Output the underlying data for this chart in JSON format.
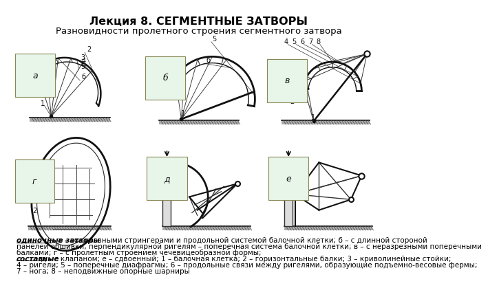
{
  "title": "Лекция 8. СЕГМЕНТНЫЕ ЗАТВОРЫ",
  "subtitle": "Разновидности пролетного строения сегментного затвора",
  "title_fontsize": 11.5,
  "subtitle_fontsize": 9.5,
  "bg_color": "#ffffff",
  "label_box_color": "#d4edda",
  "caption_line1_bold": "одиночные затворы",
  "caption_line1_rest": ": а – со сквозными стрингерами и продольной системой балочной клетки; б – с длинной стороной",
  "caption_line2": "панелей обшивки, перпендикулярной ригелям – поперечная система балочной клетки; в – с неразрезными поперечными",
  "caption_line3": "балками; г – с пролетным строением чечевицеобразной формы;",
  "caption_line4_bold": "составные",
  "caption_line4_rest": ": д – с клапаном; е – сдвоенный; 1 – балочная клетка; 2 – горизонтальные балки; 3 – криволинейные стойки;",
  "caption_line5": "4 – ригели; 5 – поперечные диафрагмы; 6 – продольные связи между ригелями, образующие подъемно-весовые фермы;",
  "caption_line6": "7 – нога; 8 – неподвижные опорные шарниры",
  "labels": [
    "а",
    "б",
    "в",
    "г",
    "д",
    "е"
  ],
  "font_size_caption": 7.5,
  "font_size_label": 9
}
